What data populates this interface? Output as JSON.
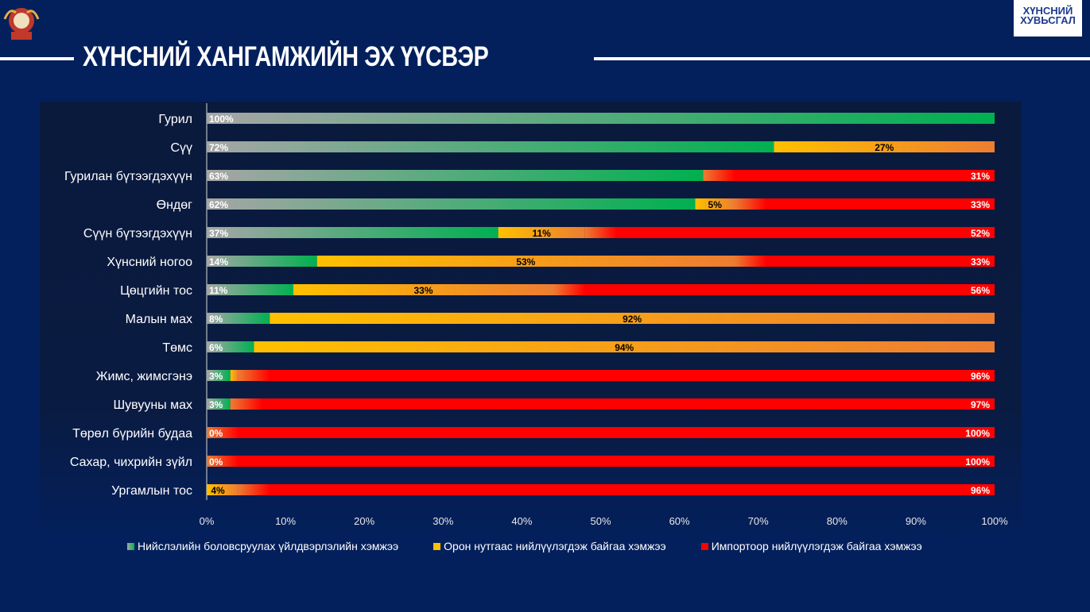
{
  "title": "ХҮНСНИЙ ХАНГАМЖИЙН ЭХ ҮҮСВЭР",
  "logo_text": [
    "ХҮНСНИЙ",
    "ХУВЬСГАЛ"
  ],
  "colors": {
    "background": "#03205c",
    "local": "#00b050",
    "local_start": "#a6a6a6",
    "regional": "#ffc000",
    "regional_end": "#ed7d31",
    "import": "#ff0000"
  },
  "chart_data": {
    "type": "bar",
    "orientation": "horizontal",
    "stacked": "100%",
    "xlim": [
      0,
      100
    ],
    "xticks": [
      "0%",
      "10%",
      "20%",
      "30%",
      "40%",
      "50%",
      "60%",
      "70%",
      "80%",
      "90%",
      "100%"
    ],
    "legend_position": "bottom",
    "series": [
      {
        "name": "Нийслэлийн боловсруулах үйлдвэрлэлийн хэмжээ"
      },
      {
        "name": "Орон нутгаас нийлүүлэгдэж байгаа хэмжээ"
      },
      {
        "name": "Импортоор нийлүүлэгдэж байгаа хэмжээ"
      }
    ],
    "categories": [
      "Гурил",
      "Сүү",
      "Гурилан бүтээгдэхүүн",
      "Өндөг",
      "Сүүн бүтээгдэхүүн",
      "Хүнсний ногоо",
      "Цөцгийн тос",
      "Малын мах",
      "Төмс",
      "Жимс, жимсгэнэ",
      "Шувууны мах",
      "Төрөл бүрийн будаа",
      "Сахар, чихрийн зүйл",
      "Ургамлын тос"
    ],
    "local": [
      100,
      72,
      63,
      62,
      37,
      14,
      11,
      8,
      6,
      3,
      3,
      0,
      0,
      null
    ],
    "regional": [
      null,
      27,
      null,
      5,
      11,
      53,
      33,
      92,
      94,
      1,
      null,
      null,
      null,
      4
    ],
    "import": [
      null,
      null,
      31,
      33,
      52,
      33,
      56,
      null,
      null,
      96,
      97,
      100,
      100,
      96
    ],
    "labels": {
      "local": [
        "100%",
        "72%",
        "63%",
        "62%",
        "37%",
        "14%",
        "11%",
        "8%",
        "6%",
        "3%",
        "3%",
        "0%",
        "0%",
        ""
      ],
      "regional": [
        "",
        "27%",
        "",
        "5%",
        "11%",
        "53%",
        "33%",
        "92%",
        "94%",
        "",
        "",
        "",
        "",
        "4%"
      ],
      "import": [
        "",
        "",
        "31%",
        "33%",
        "52%",
        "33%",
        "56%",
        "",
        "",
        "96%",
        "97%",
        "100%",
        "100%",
        "96%"
      ]
    }
  }
}
